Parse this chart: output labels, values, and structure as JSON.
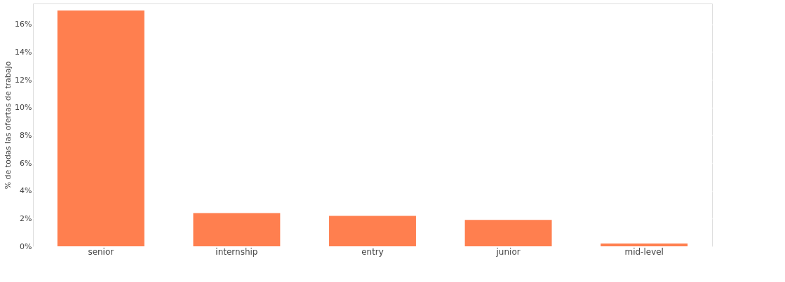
{
  "chart_data": {
    "type": "bar",
    "ylabel": "% de todas las ofertas de trabajo",
    "categories": [
      "senior",
      "internship",
      "entry",
      "junior",
      "mid-level"
    ],
    "values": [
      17.0,
      2.4,
      2.2,
      1.9,
      0.2
    ],
    "color": "#ff7f4f",
    "ylim": [
      0,
      17.5
    ],
    "yticks": [
      {
        "value": 0,
        "label": "0%"
      },
      {
        "value": 2,
        "label": "2%"
      },
      {
        "value": 4,
        "label": "4%"
      },
      {
        "value": 6,
        "label": "6%"
      },
      {
        "value": 8,
        "label": "8%"
      },
      {
        "value": 10,
        "label": "10%"
      },
      {
        "value": 12,
        "label": "12%"
      },
      {
        "value": 14,
        "label": "14%"
      },
      {
        "value": 16,
        "label": "16%"
      }
    ],
    "grid": "y"
  }
}
